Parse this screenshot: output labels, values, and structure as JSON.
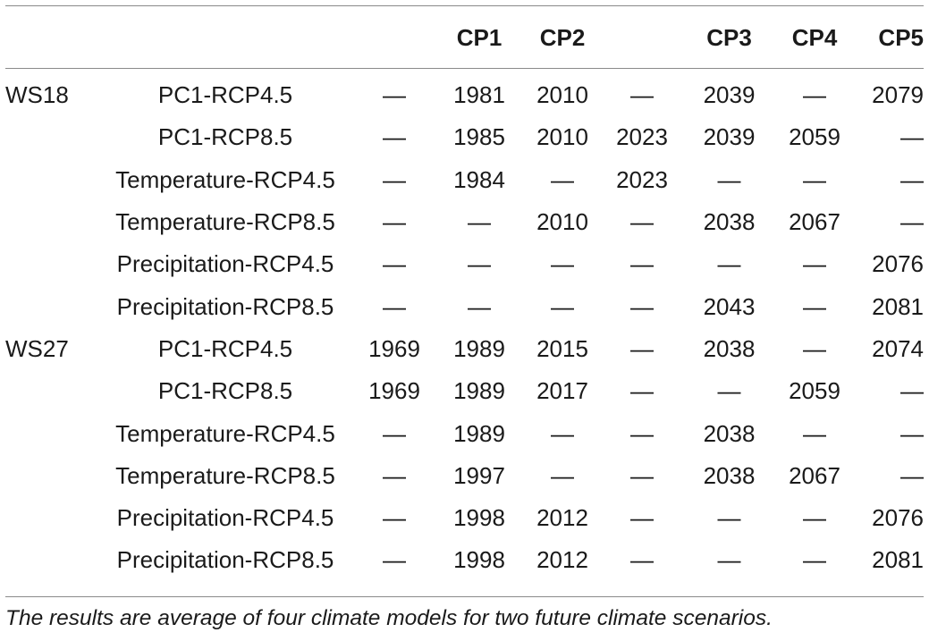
{
  "header": {
    "col_ws": "",
    "col_var": "",
    "col_a": "",
    "col_cp1": "CP1",
    "col_cp2": "CP2",
    "col_b": "",
    "col_cp3": "CP3",
    "col_cp4": "CP4",
    "col_cp5": "CP5"
  },
  "rows": [
    {
      "ws": "WS18",
      "var": "PC1-RCP4.5",
      "c0": "—",
      "c1": "1981",
      "c2": "2010",
      "c3": "—",
      "c4": "2039",
      "c5": "—",
      "c6": "2079"
    },
    {
      "ws": "",
      "var": "PC1-RCP8.5",
      "c0": "—",
      "c1": "1985",
      "c2": "2010",
      "c3": "2023",
      "c4": "2039",
      "c5": "2059",
      "c6": "—"
    },
    {
      "ws": "",
      "var": "Temperature-RCP4.5",
      "c0": "—",
      "c1": "1984",
      "c2": "—",
      "c3": "2023",
      "c4": "—",
      "c5": "—",
      "c6": "—"
    },
    {
      "ws": "",
      "var": "Temperature-RCP8.5",
      "c0": "—",
      "c1": "—",
      "c2": "2010",
      "c3": "—",
      "c4": "2038",
      "c5": "2067",
      "c6": "—"
    },
    {
      "ws": "",
      "var": "Precipitation-RCP4.5",
      "c0": "—",
      "c1": "—",
      "c2": "—",
      "c3": "—",
      "c4": "—",
      "c5": "—",
      "c6": "2076"
    },
    {
      "ws": "",
      "var": "Precipitation-RCP8.5",
      "c0": "—",
      "c1": "—",
      "c2": "—",
      "c3": "—",
      "c4": "2043",
      "c5": "—",
      "c6": "2081"
    },
    {
      "ws": "WS27",
      "var": "PC1-RCP4.5",
      "c0": "1969",
      "c1": "1989",
      "c2": "2015",
      "c3": "—",
      "c4": "2038",
      "c5": "—",
      "c6": "2074"
    },
    {
      "ws": "",
      "var": "PC1-RCP8.5",
      "c0": "1969",
      "c1": "1989",
      "c2": "2017",
      "c3": "—",
      "c4": "—",
      "c5": "2059",
      "c6": "—"
    },
    {
      "ws": "",
      "var": "Temperature-RCP4.5",
      "c0": "—",
      "c1": "1989",
      "c2": "—",
      "c3": "—",
      "c4": "2038",
      "c5": "—",
      "c6": "—"
    },
    {
      "ws": "",
      "var": "Temperature-RCP8.5",
      "c0": "—",
      "c1": "1997",
      "c2": "—",
      "c3": "—",
      "c4": "2038",
      "c5": "2067",
      "c6": "—"
    },
    {
      "ws": "",
      "var": "Precipitation-RCP4.5",
      "c0": "—",
      "c1": "1998",
      "c2": "2012",
      "c3": "—",
      "c4": "—",
      "c5": "—",
      "c6": "2076"
    },
    {
      "ws": "",
      "var": "Precipitation-RCP8.5",
      "c0": "—",
      "c1": "1998",
      "c2": "2012",
      "c3": "—",
      "c4": "—",
      "c5": "—",
      "c6": "2081"
    }
  ],
  "footnote": "The results are average of four climate models for two future climate scenarios."
}
